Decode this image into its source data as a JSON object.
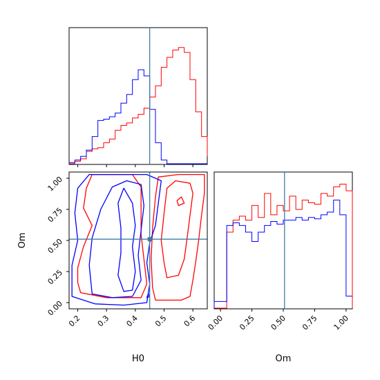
{
  "colors": {
    "series_a": "#ff0000",
    "series_b": "#0000ff",
    "truth": "#3b7ca8",
    "frame": "#000000"
  },
  "chart_data": [
    {
      "type": "histogram-step",
      "panel": "H0 marginal",
      "xlim": [
        0.17,
        0.65
      ],
      "bin_edges": [
        0.17,
        0.19,
        0.21,
        0.23,
        0.25,
        0.27,
        0.29,
        0.31,
        0.33,
        0.35,
        0.37,
        0.39,
        0.41,
        0.43,
        0.45,
        0.47,
        0.49,
        0.51,
        0.53,
        0.55,
        0.57,
        0.59,
        0.61,
        0.63,
        0.65
      ],
      "truth": 0.45,
      "series": [
        {
          "color": "#ff0000",
          "counts": [
            0,
            0.02,
            0.04,
            0.1,
            0.12,
            0.13,
            0.17,
            0.2,
            0.27,
            0.31,
            0.33,
            0.37,
            0.4,
            0.45,
            0.54,
            0.63,
            0.78,
            0.86,
            0.92,
            0.94,
            0.9,
            0.68,
            0.42,
            0.22,
            0.06
          ]
        },
        {
          "color": "#0000ff",
          "counts": [
            0.01,
            0.03,
            0.06,
            0.11,
            0.22,
            0.35,
            0.36,
            0.38,
            0.41,
            0.49,
            0.56,
            0.68,
            0.76,
            0.71,
            0.44,
            0.17,
            0.03,
            0,
            0,
            0,
            0,
            0,
            0,
            0,
            0
          ]
        }
      ],
      "xticks": [],
      "yticks": []
    },
    {
      "type": "histogram-step",
      "panel": "Om marginal",
      "xlim": [
        -0.05,
        1.05
      ],
      "bin_edges": [
        -0.05,
        0.0,
        0.05,
        0.1,
        0.15,
        0.2,
        0.25,
        0.3,
        0.35,
        0.4,
        0.45,
        0.5,
        0.55,
        0.6,
        0.65,
        0.7,
        0.75,
        0.8,
        0.85,
        0.9,
        0.95,
        1.0,
        1.05
      ],
      "truth": 0.51,
      "series": [
        {
          "color": "#ff0000",
          "counts": [
            0,
            0,
            0.57,
            0.66,
            0.69,
            0.66,
            0.77,
            0.68,
            0.86,
            0.7,
            0.77,
            0.73,
            0.84,
            0.74,
            0.81,
            0.79,
            0.78,
            0.86,
            0.84,
            0.91,
            0.93,
            0.88,
            0
          ]
        },
        {
          "color": "#0000ff",
          "counts": [
            0.05,
            0.05,
            0.62,
            0.64,
            0.62,
            0.57,
            0.5,
            0.57,
            0.62,
            0.65,
            0.63,
            0.66,
            0.66,
            0.68,
            0.66,
            0.68,
            0.67,
            0.7,
            0.72,
            0.81,
            0.7,
            0.09,
            0.09
          ]
        }
      ],
      "xticks": [
        "0.00",
        "0.25",
        "0.50",
        "0.75",
        "1.00"
      ],
      "xlabel": "Om"
    },
    {
      "type": "contour",
      "panel": "H0 vs Om",
      "xlim": [
        0.17,
        0.65
      ],
      "ylim": [
        -0.05,
        1.05
      ],
      "truth": [
        0.45,
        0.51
      ],
      "xticks": [
        "0.2",
        "0.3",
        "0.4",
        "0.5",
        "0.6"
      ],
      "yticks": [
        "0.00",
        "0.25",
        "0.50",
        "0.75",
        "1.00"
      ],
      "xlabel": "H0",
      "ylabel": "Om",
      "series": [
        {
          "color": "#ff0000",
          "contours": [
            [
              [
                0.47,
                0.02
              ],
              [
                0.56,
                0.02
              ],
              [
                0.59,
                0.05
              ],
              [
                0.6,
                0.18
              ],
              [
                0.61,
                0.33
              ],
              [
                0.62,
                0.5
              ],
              [
                0.63,
                0.7
              ],
              [
                0.64,
                0.88
              ],
              [
                0.64,
                1.03
              ],
              [
                0.55,
                1.03
              ],
              [
                0.48,
                1.01
              ],
              [
                0.47,
                0.85
              ],
              [
                0.46,
                0.6
              ],
              [
                0.455,
                0.35
              ],
              [
                0.46,
                0.12
              ]
            ],
            [
              [
                0.51,
                0.2
              ],
              [
                0.55,
                0.22
              ],
              [
                0.57,
                0.35
              ],
              [
                0.58,
                0.52
              ],
              [
                0.59,
                0.7
              ],
              [
                0.6,
                0.88
              ],
              [
                0.59,
                0.96
              ],
              [
                0.54,
                0.98
              ],
              [
                0.51,
                0.92
              ],
              [
                0.5,
                0.72
              ],
              [
                0.49,
                0.5
              ],
              [
                0.5,
                0.32
              ]
            ],
            [
              [
                0.21,
                0.08
              ],
              [
                0.3,
                0.04
              ],
              [
                0.42,
                0.04
              ],
              [
                0.44,
                0.15
              ],
              [
                0.43,
                0.35
              ],
              [
                0.42,
                0.55
              ],
              [
                0.42,
                0.75
              ],
              [
                0.42,
                0.93
              ],
              [
                0.39,
                1.03
              ],
              [
                0.25,
                1.03
              ],
              [
                0.23,
                0.92
              ],
              [
                0.22,
                0.76
              ],
              [
                0.25,
                0.62
              ],
              [
                0.22,
                0.45
              ],
              [
                0.2,
                0.28
              ],
              [
                0.2,
                0.16
              ]
            ],
            [
              [
                0.55,
                0.78
              ],
              [
                0.57,
                0.8
              ],
              [
                0.56,
                0.85
              ],
              [
                0.545,
                0.82
              ]
            ]
          ]
        },
        {
          "color": "#0000ff",
          "contours": [
            [
              [
                0.18,
                0.05
              ],
              [
                0.26,
                -0.01
              ],
              [
                0.36,
                -0.02
              ],
              [
                0.44,
                0.0
              ],
              [
                0.45,
                0.15
              ],
              [
                0.44,
                0.32
              ],
              [
                0.45,
                0.48
              ],
              [
                0.47,
                0.62
              ],
              [
                0.48,
                0.8
              ],
              [
                0.49,
                0.98
              ],
              [
                0.44,
                1.03
              ],
              [
                0.33,
                1.03
              ],
              [
                0.24,
                1.03
              ],
              [
                0.2,
                0.92
              ],
              [
                0.19,
                0.72
              ],
              [
                0.2,
                0.5
              ],
              [
                0.18,
                0.3
              ]
            ],
            [
              [
                0.25,
                0.07
              ],
              [
                0.32,
                0.04
              ],
              [
                0.39,
                0.05
              ],
              [
                0.42,
                0.18
              ],
              [
                0.41,
                0.38
              ],
              [
                0.42,
                0.58
              ],
              [
                0.43,
                0.78
              ],
              [
                0.42,
                0.95
              ],
              [
                0.37,
                0.98
              ],
              [
                0.32,
                0.93
              ],
              [
                0.28,
                0.75
              ],
              [
                0.25,
                0.52
              ],
              [
                0.24,
                0.3
              ]
            ],
            [
              [
                0.36,
                0.09
              ],
              [
                0.39,
                0.1
              ],
              [
                0.4,
                0.25
              ],
              [
                0.39,
                0.45
              ],
              [
                0.4,
                0.62
              ],
              [
                0.39,
                0.8
              ],
              [
                0.36,
                0.92
              ],
              [
                0.34,
                0.8
              ],
              [
                0.35,
                0.6
              ],
              [
                0.35,
                0.4
              ],
              [
                0.34,
                0.22
              ]
            ],
            [
              [
                0.44,
                0.04
              ],
              [
                0.45,
                0.05
              ],
              [
                0.445,
                0.07
              ]
            ]
          ]
        }
      ]
    }
  ]
}
